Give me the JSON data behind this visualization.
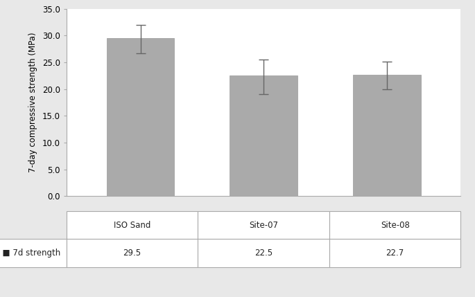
{
  "categories": [
    "ISO Sand",
    "Site-07",
    "Site-08"
  ],
  "values": [
    29.5,
    22.5,
    22.7
  ],
  "errors_upper": [
    2.5,
    3.0,
    2.5
  ],
  "errors_lower": [
    2.8,
    3.5,
    2.8
  ],
  "bar_color": "#aaaaaa",
  "error_color": "#666666",
  "ylabel": "7-day compressive strength (MPa)",
  "ylim": [
    0.0,
    35.0
  ],
  "ytick_values": [
    0.0,
    5.0,
    10.0,
    15.0,
    20.0,
    25.0,
    30.0,
    35.0
  ],
  "ytick_labels": [
    "0.0",
    "5.0",
    "10.0",
    "15.0",
    "20.0",
    "25.0",
    "30.0",
    "35.0"
  ],
  "legend_label": "7d strength",
  "legend_square_color": "#888888",
  "table_values": [
    "29.5",
    "22.5",
    "22.7"
  ],
  "bg_color": "#ffffff",
  "outer_bg": "#e8e8e8"
}
